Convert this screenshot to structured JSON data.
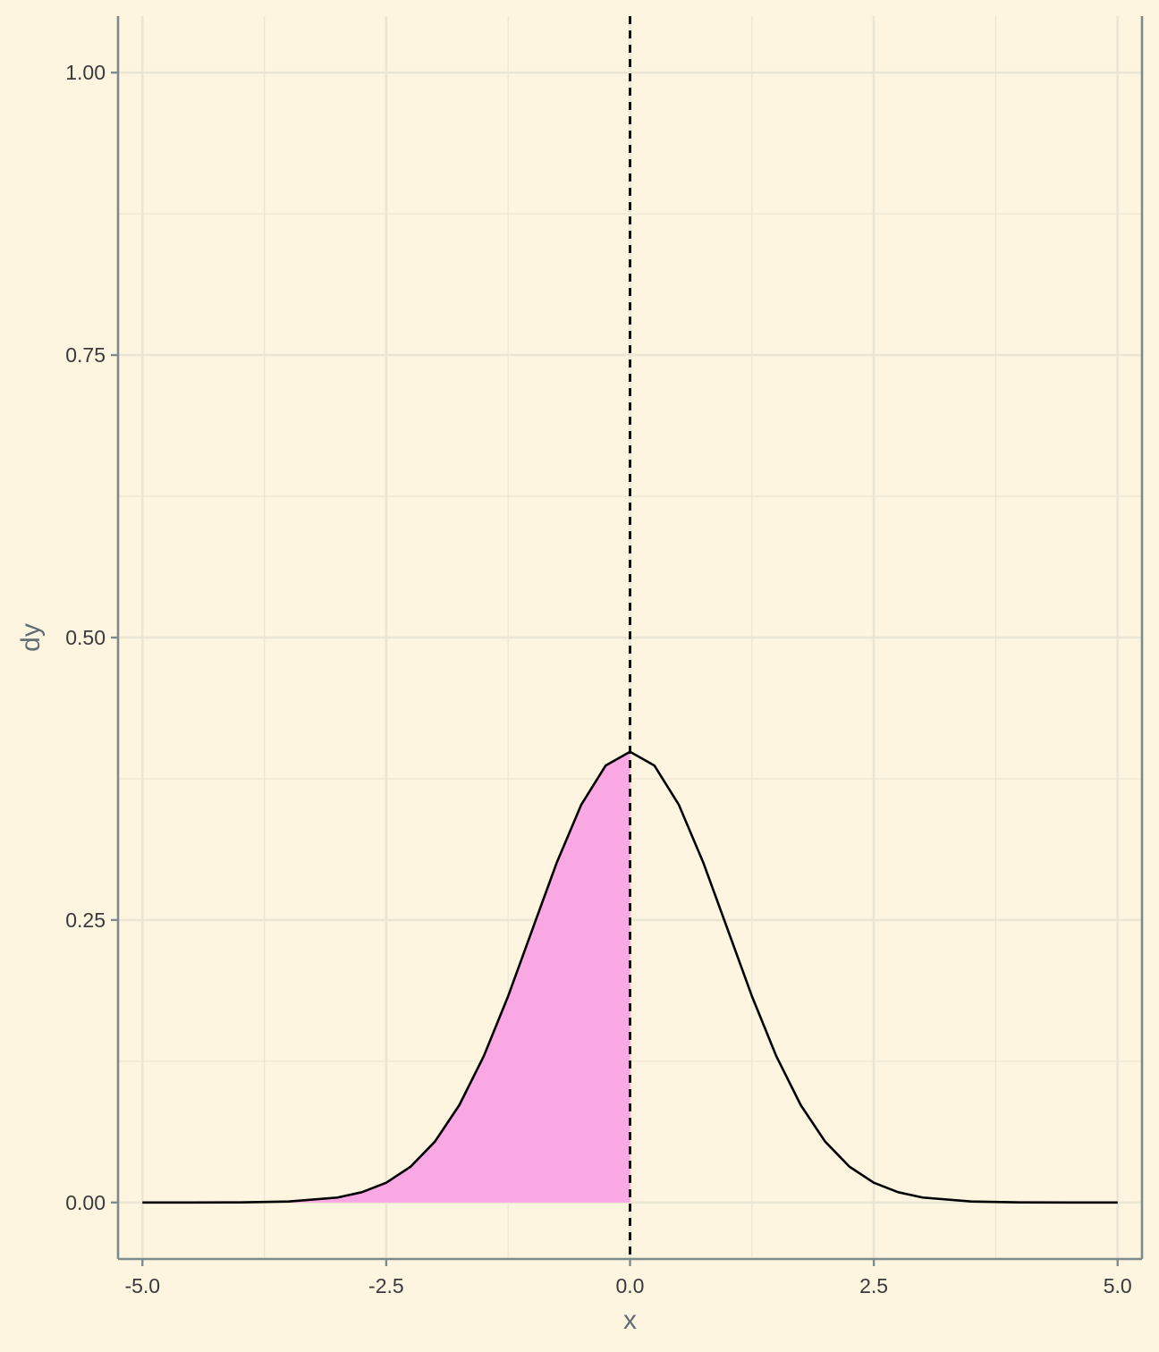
{
  "colors": {
    "background": "#fdf5e0",
    "grid": "#ebe6d4",
    "axis_line": "#7d8c8a",
    "curve": "#000000",
    "fill": "#f9a8e4",
    "tick_text": "#3a3a3a",
    "axis_title": "#5f6e73"
  },
  "chart_data": {
    "type": "area",
    "title": "",
    "xlabel": "x",
    "ylabel": "dy",
    "xlim": [
      -5.25,
      5.25
    ],
    "ylim": [
      -0.05,
      1.05
    ],
    "x_ticks": [
      -5.0,
      -2.5,
      0.0,
      2.5,
      5.0
    ],
    "x_tick_labels": [
      "-5.0",
      "-2.5",
      "0.0",
      "2.5",
      "5.0"
    ],
    "y_ticks": [
      0.0,
      0.25,
      0.5,
      0.75,
      1.0
    ],
    "y_tick_labels": [
      "0.00",
      "0.25",
      "0.50",
      "0.75",
      "1.00"
    ],
    "grid": true,
    "legend": "none",
    "series": [
      {
        "style": "line",
        "x": [
          -5.0,
          -4.5,
          -4.0,
          -3.5,
          -3.0,
          -2.75,
          -2.5,
          -2.25,
          -2.0,
          -1.75,
          -1.5,
          -1.25,
          -1.0,
          -0.75,
          -0.5,
          -0.25,
          0.0,
          0.25,
          0.5,
          0.75,
          1.0,
          1.25,
          1.5,
          1.75,
          2.0,
          2.25,
          2.5,
          2.75,
          3.0,
          3.5,
          4.0,
          4.5,
          5.0
        ],
        "y": [
          0.0,
          0.0,
          0.0001,
          0.0009,
          0.0044,
          0.0091,
          0.0175,
          0.0317,
          0.054,
          0.0863,
          0.1295,
          0.1826,
          0.242,
          0.3011,
          0.3521,
          0.3867,
          0.3989,
          0.3867,
          0.3521,
          0.3011,
          0.242,
          0.1826,
          0.1295,
          0.0863,
          0.054,
          0.0317,
          0.0175,
          0.0091,
          0.0044,
          0.0009,
          0.0001,
          0.0,
          0.0
        ]
      },
      {
        "style": "shaded-area",
        "x": [
          -5.0,
          -4.5,
          -4.0,
          -3.5,
          -3.0,
          -2.75,
          -2.5,
          -2.25,
          -2.0,
          -1.75,
          -1.5,
          -1.25,
          -1.0,
          -0.75,
          -0.5,
          -0.25,
          0.0
        ],
        "y": [
          0.0,
          0.0,
          0.0001,
          0.0009,
          0.0044,
          0.0091,
          0.0175,
          0.0317,
          0.054,
          0.0863,
          0.1295,
          0.1826,
          0.242,
          0.3011,
          0.3521,
          0.3867,
          0.3989
        ]
      }
    ],
    "vline": {
      "x": 0.0,
      "style": "dashed"
    }
  }
}
